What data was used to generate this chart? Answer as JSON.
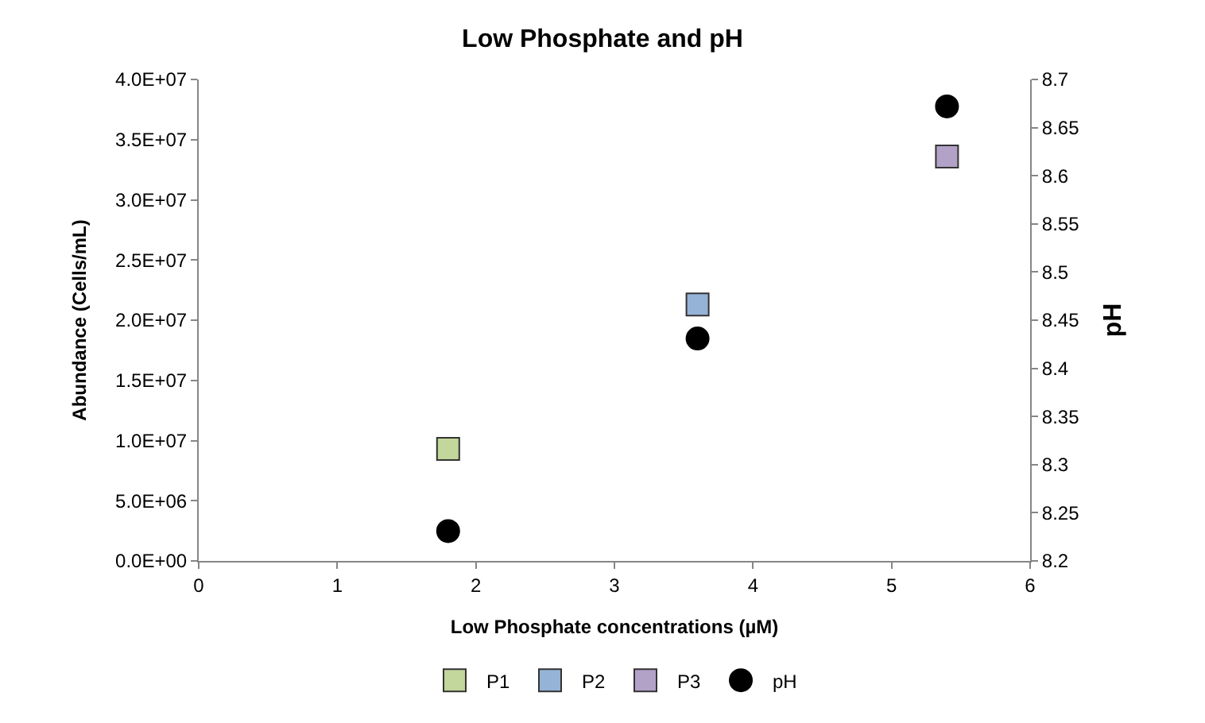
{
  "chart_data": {
    "type": "scatter",
    "title": "Low Phosphate and pH",
    "xlabel": "Low Phosphate concentrations (µM)",
    "ylabel": "Abundance (Cells/mL)",
    "y2label": "pH",
    "series": [
      {
        "name": "P1",
        "color": "#c3d69b",
        "marker": "square",
        "x": [
          1.8
        ],
        "values": [
          9300000
        ]
      },
      {
        "name": "P2",
        "color": "#95b3d7",
        "marker": "square",
        "x": [
          3.6
        ],
        "values": [
          21300000
        ]
      },
      {
        "name": "P3",
        "color": "#b3a2c7",
        "marker": "square",
        "x": [
          5.4
        ],
        "values": [
          33600000
        ]
      },
      {
        "name": "pH",
        "color": "#000000",
        "marker": "circle",
        "axis": "y2",
        "x": [
          1.8,
          3.6,
          5.4
        ],
        "values": [
          8.231,
          8.431,
          8.672
        ]
      }
    ],
    "xlim": [
      0,
      6
    ],
    "xticks": [
      0,
      1,
      2,
      3,
      4,
      5,
      6
    ],
    "ylim": [
      0,
      40000000
    ],
    "yticks": [
      {
        "value": 0,
        "label": "0.0E+00"
      },
      {
        "value": 5000000,
        "label": "5.0E+06"
      },
      {
        "value": 10000000,
        "label": "1.0E+07"
      },
      {
        "value": 15000000,
        "label": "1.5E+07"
      },
      {
        "value": 20000000,
        "label": "2.0E+07"
      },
      {
        "value": 25000000,
        "label": "2.5E+07"
      },
      {
        "value": 30000000,
        "label": "3.0E+07"
      },
      {
        "value": 35000000,
        "label": "3.5E+07"
      },
      {
        "value": 40000000,
        "label": "4.0E+07"
      }
    ],
    "y2lim": [
      8.2,
      8.7
    ],
    "y2ticks": [
      8.2,
      8.25,
      8.3,
      8.35,
      8.4,
      8.45,
      8.5,
      8.55,
      8.6,
      8.65,
      8.7
    ],
    "legend": "bottom"
  }
}
